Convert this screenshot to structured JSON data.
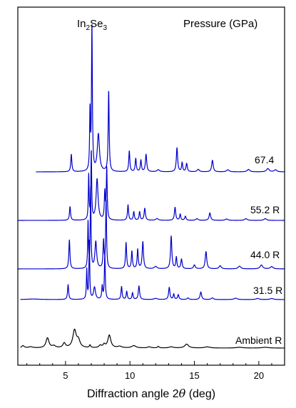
{
  "chart_data": {
    "type": "line",
    "title": "In2Se3",
    "title_main": "In",
    "title_sub1": "2",
    "title_mid": "Se",
    "title_sub2": "3",
    "legend_title": "Pressure (GPa)",
    "xlabel_prefix": "Diffraction angle 2",
    "xlabel_symbol": "θ",
    "xlabel_suffix": " (deg)",
    "ylabel": "",
    "xlim": [
      1.3,
      22.0
    ],
    "x_ticks": [
      5,
      10,
      15,
      20
    ],
    "x_tick_labels": [
      "5",
      "10",
      "15",
      "20"
    ],
    "y_ticks": false,
    "grid": false,
    "series": [
      {
        "name": "Ambient R",
        "color": "#000000",
        "x_range": [
          1.5,
          22.0
        ],
        "baseline": 0.0,
        "peaks": [
          [
            1.7,
            0.06,
            0.12
          ],
          [
            2.3,
            0.03,
            0.2
          ],
          [
            3.6,
            0.26,
            0.14
          ],
          [
            4.1,
            0.05,
            0.15
          ],
          [
            4.9,
            0.12,
            0.12
          ],
          [
            5.7,
            0.45,
            0.16
          ],
          [
            6.0,
            0.18,
            0.15
          ],
          [
            6.9,
            0.07,
            0.06
          ],
          [
            7.7,
            0.06,
            0.12
          ],
          [
            8.0,
            0.08,
            0.1
          ],
          [
            8.4,
            0.33,
            0.14
          ],
          [
            9.2,
            0.04,
            0.2
          ],
          [
            10.3,
            0.06,
            0.2
          ],
          [
            11.5,
            0.03,
            0.15
          ],
          [
            12.2,
            0.04,
            0.08
          ],
          [
            13.2,
            0.03,
            0.2
          ],
          [
            14.4,
            0.1,
            0.18
          ],
          [
            16.0,
            0.03,
            0.25
          ],
          [
            18.5,
            0.02,
            0.3
          ],
          [
            20.5,
            0.02,
            0.3
          ]
        ]
      },
      {
        "name": "31.5 R",
        "color": "#0000cc",
        "x_range": [
          1.5,
          22.0
        ],
        "baseline": 0.0,
        "peaks": [
          [
            2.5,
            0.02,
            0.6
          ],
          [
            5.2,
            0.55,
            0.05
          ],
          [
            6.65,
            1.1,
            0.035
          ],
          [
            6.85,
            2.2,
            0.035
          ],
          [
            7.25,
            0.45,
            0.09
          ],
          [
            7.85,
            0.48,
            0.045
          ],
          [
            8.05,
            1.7,
            0.04
          ],
          [
            9.35,
            0.48,
            0.05
          ],
          [
            9.75,
            0.3,
            0.05
          ],
          [
            10.2,
            0.25,
            0.05
          ],
          [
            10.7,
            0.5,
            0.06
          ],
          [
            12.0,
            0.04,
            0.15
          ],
          [
            13.05,
            0.45,
            0.06
          ],
          [
            13.4,
            0.2,
            0.05
          ],
          [
            13.75,
            0.18,
            0.06
          ],
          [
            14.5,
            0.06,
            0.08
          ],
          [
            15.5,
            0.28,
            0.07
          ],
          [
            16.4,
            0.06,
            0.1
          ],
          [
            18.2,
            0.05,
            0.15
          ],
          [
            19.9,
            0.04,
            0.15
          ],
          [
            21.0,
            0.04,
            0.15
          ]
        ]
      },
      {
        "name": "44.0 R",
        "color": "#0000cc",
        "x_range": [
          1.3,
          22.0
        ],
        "baseline": 0.0,
        "peaks": [
          [
            5.3,
            0.75,
            0.05
          ],
          [
            6.75,
            1.2,
            0.035
          ],
          [
            6.95,
            2.1,
            0.035
          ],
          [
            7.35,
            0.7,
            0.08
          ],
          [
            7.95,
            0.7,
            0.045
          ],
          [
            8.15,
            1.8,
            0.04
          ],
          [
            9.7,
            0.68,
            0.05
          ],
          [
            10.15,
            0.45,
            0.05
          ],
          [
            10.6,
            0.5,
            0.05
          ],
          [
            11.0,
            0.7,
            0.06
          ],
          [
            12.0,
            0.06,
            0.12
          ],
          [
            13.2,
            0.85,
            0.06
          ],
          [
            13.6,
            0.3,
            0.05
          ],
          [
            14.0,
            0.25,
            0.06
          ],
          [
            15.0,
            0.1,
            0.08
          ],
          [
            15.9,
            0.45,
            0.07
          ],
          [
            17.0,
            0.08,
            0.1
          ],
          [
            18.5,
            0.07,
            0.12
          ],
          [
            20.2,
            0.1,
            0.12
          ],
          [
            21.0,
            0.06,
            0.12
          ]
        ]
      },
      {
        "name": "55.2 R",
        "color": "#0000cc",
        "x_range": [
          1.3,
          22.0
        ],
        "baseline": 0.0,
        "peaks": [
          [
            5.35,
            0.4,
            0.05
          ],
          [
            6.8,
            1.3,
            0.035
          ],
          [
            7.0,
            2.0,
            0.035
          ],
          [
            7.45,
            1.2,
            0.09
          ],
          [
            8.05,
            0.8,
            0.045
          ],
          [
            8.2,
            1.5,
            0.04
          ],
          [
            9.85,
            0.45,
            0.05
          ],
          [
            10.3,
            0.25,
            0.05
          ],
          [
            10.75,
            0.25,
            0.05
          ],
          [
            11.15,
            0.35,
            0.06
          ],
          [
            12.1,
            0.05,
            0.12
          ],
          [
            13.5,
            0.38,
            0.06
          ],
          [
            13.9,
            0.18,
            0.05
          ],
          [
            14.3,
            0.12,
            0.06
          ],
          [
            15.2,
            0.05,
            0.1
          ],
          [
            16.2,
            0.22,
            0.07
          ],
          [
            17.5,
            0.04,
            0.12
          ],
          [
            19.0,
            0.05,
            0.12
          ],
          [
            20.5,
            0.05,
            0.12
          ]
        ]
      },
      {
        "name": "67.4",
        "color": "#0000cc",
        "x_range": [
          2.7,
          22.0
        ],
        "baseline": 0.0,
        "peaks": [
          [
            5.45,
            0.42,
            0.05
          ],
          [
            6.9,
            1.4,
            0.035
          ],
          [
            7.05,
            3.5,
            0.04
          ],
          [
            7.55,
            0.9,
            0.1
          ],
          [
            8.35,
            1.95,
            0.045
          ],
          [
            9.95,
            0.5,
            0.05
          ],
          [
            10.45,
            0.32,
            0.05
          ],
          [
            10.85,
            0.28,
            0.05
          ],
          [
            11.25,
            0.42,
            0.06
          ],
          [
            12.2,
            0.05,
            0.12
          ],
          [
            13.65,
            0.58,
            0.06
          ],
          [
            14.05,
            0.22,
            0.05
          ],
          [
            14.4,
            0.2,
            0.06
          ],
          [
            15.3,
            0.06,
            0.1
          ],
          [
            16.4,
            0.28,
            0.07
          ],
          [
            17.6,
            0.05,
            0.12
          ],
          [
            19.2,
            0.06,
            0.12
          ],
          [
            20.7,
            0.08,
            0.12
          ],
          [
            21.3,
            0.05,
            0.12
          ]
        ]
      }
    ]
  }
}
